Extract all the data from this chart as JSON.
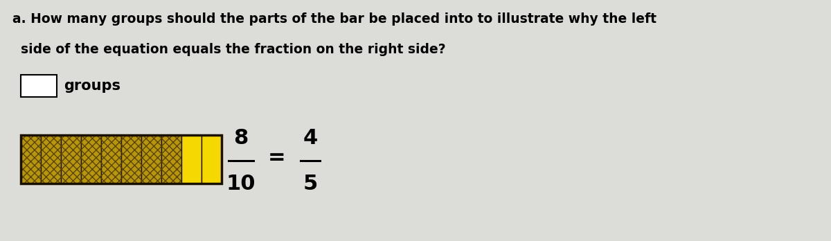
{
  "title_line1": "a. How many groups should the parts of the bar be placed into to illustrate why the left",
  "title_line2": "   side of the equation equals the fraction on the right side?",
  "label_groups": "groups",
  "total_segments": 10,
  "filled_segments": 8,
  "dark_color": "#B8960C",
  "light_color": "#F5D800",
  "border_color": "#1A1000",
  "bg_color": "#DCDDD8",
  "fraction_numerator": "8",
  "fraction_denominator": "10",
  "fraction_num2": "4",
  "fraction_den2": "5"
}
